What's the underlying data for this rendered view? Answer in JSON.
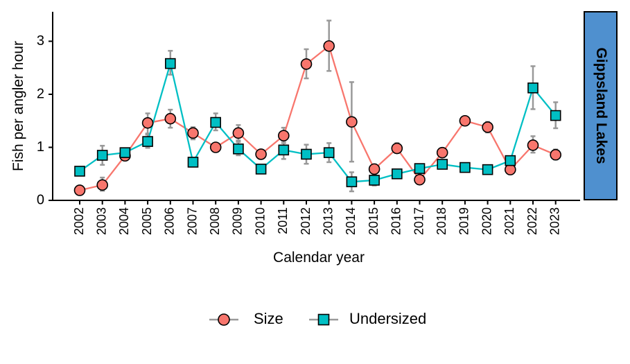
{
  "chart_data": {
    "type": "line",
    "xlabel": "Calendar year",
    "ylabel": "Fish per angler hour",
    "ylim": [
      0,
      3.4
    ],
    "yticks": [
      0,
      1,
      2,
      3
    ],
    "grid": false,
    "legend_position": "bottom",
    "facet_label": "Gippsland Lakes",
    "x": [
      2002,
      2003,
      2004,
      2005,
      2006,
      2007,
      2008,
      2009,
      2010,
      2011,
      2012,
      2013,
      2014,
      2015,
      2016,
      2017,
      2018,
      2019,
      2020,
      2021,
      2022,
      2023
    ],
    "series": [
      {
        "name": "Size",
        "color": "#f8766d",
        "marker": "circle",
        "values": [
          0.19,
          0.29,
          0.84,
          1.46,
          1.54,
          1.27,
          1.0,
          1.27,
          0.87,
          1.22,
          2.57,
          2.91,
          1.48,
          0.59,
          0.98,
          0.39,
          0.9,
          1.5,
          1.38,
          0.58,
          1.04,
          0.86
        ],
        "lower": [
          0.14,
          0.18,
          0.78,
          1.26,
          1.37,
          1.15,
          0.93,
          1.13,
          0.8,
          1.08,
          2.3,
          2.44,
          0.73,
          0.5,
          0.9,
          0.33,
          0.82,
          1.45,
          1.28,
          0.52,
          0.9,
          0.77
        ],
        "upper": [
          0.25,
          0.43,
          0.9,
          1.64,
          1.71,
          1.38,
          1.07,
          1.42,
          0.95,
          1.37,
          2.85,
          3.39,
          2.23,
          0.68,
          1.08,
          0.46,
          0.98,
          1.56,
          1.48,
          0.64,
          1.21,
          0.96
        ]
      },
      {
        "name": "Undersized",
        "color": "#00bfc4",
        "marker": "square",
        "values": [
          0.55,
          0.85,
          0.9,
          1.11,
          2.58,
          0.72,
          1.47,
          0.97,
          0.59,
          0.95,
          0.87,
          0.9,
          0.35,
          0.38,
          0.5,
          0.6,
          0.68,
          0.62,
          0.58,
          0.75,
          2.12,
          1.6
        ],
        "lower": [
          0.48,
          0.67,
          0.83,
          0.99,
          2.37,
          0.66,
          1.32,
          0.85,
          0.53,
          0.78,
          0.69,
          0.72,
          0.17,
          0.28,
          0.45,
          0.53,
          0.62,
          0.57,
          0.53,
          0.68,
          1.72,
          1.36
        ],
        "upper": [
          0.62,
          1.03,
          0.97,
          1.24,
          2.82,
          0.79,
          1.64,
          1.1,
          0.66,
          1.12,
          1.05,
          1.08,
          0.53,
          0.48,
          0.56,
          0.67,
          0.74,
          0.67,
          0.63,
          0.82,
          2.53,
          1.85
        ]
      }
    ]
  }
}
